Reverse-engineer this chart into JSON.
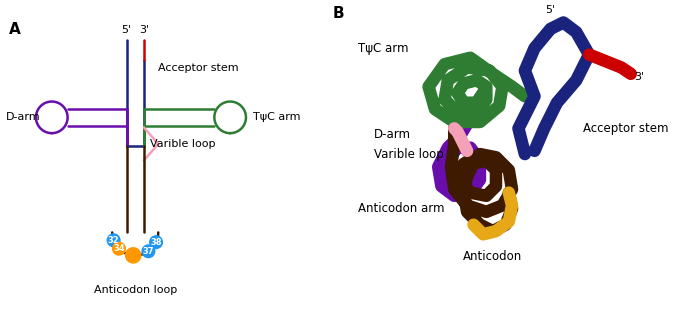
{
  "panel_A_label": "A",
  "panel_B_label": "B",
  "colors": {
    "acceptor_stem": "#1a237e",
    "acceptor_3prime": "#cc0000",
    "TpsiC_arm": "#2e7d32",
    "D_arm": "#6a0dad",
    "variable_loop": "#f4a0b8",
    "anticodon_arm": "#3e1a00",
    "anticodon": "#e6a817",
    "blue_nucleotide": "#2196f3",
    "orange_nucleotide": "#ff9800",
    "background": "#ffffff"
  },
  "label_acceptor_stem": "Acceptor stem",
  "label_TpsiC": "TψC arm",
  "label_D_arm": "D-arm",
  "label_variable_loop": "Varible loop",
  "label_anticodon_loop": "Anticodon loop",
  "label_5prime": "5'",
  "label_3prime": "3'",
  "label_anticodon_arm_B": "Anticodon arm",
  "label_anticodon_B": "Anticodon",
  "label_D_arm_B": "D-arm",
  "label_variable_loop_B": "Varible loop",
  "label_TpsiC_B": "TψC arm",
  "label_acceptor_stem_B": "Acceptor stem",
  "label_5prime_B": "5'",
  "label_3prime_B": "3'"
}
